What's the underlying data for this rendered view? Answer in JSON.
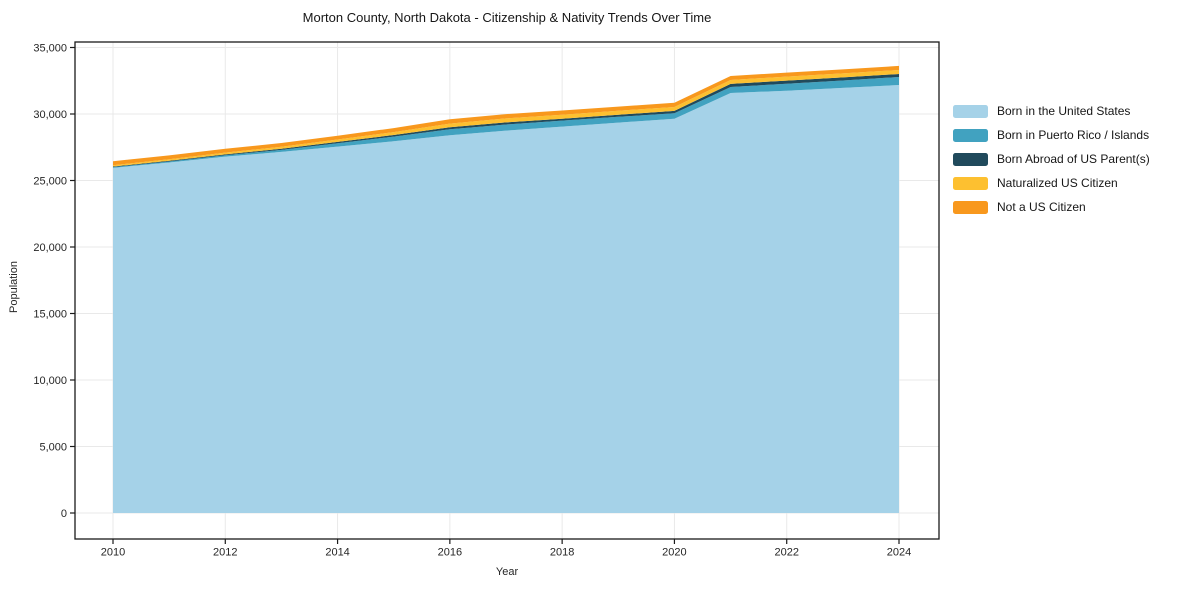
{
  "chart_data": {
    "type": "area",
    "stacked": true,
    "title": "Morton County, North Dakota - Citizenship & Nativity Trends Over Time",
    "xlabel": "Year",
    "ylabel": "Population",
    "x": [
      2010,
      2011,
      2012,
      2013,
      2014,
      2015,
      2016,
      2017,
      2018,
      2019,
      2020,
      2021,
      2022,
      2023,
      2024
    ],
    "series": [
      {
        "name": "Born in the United States",
        "color": "#a5d2e8",
        "values": [
          25950,
          26350,
          26800,
          27150,
          27550,
          27950,
          28400,
          28750,
          29050,
          29350,
          29650,
          31580,
          31750,
          31960,
          32180
        ]
      },
      {
        "name": "Born in Puerto Rico / Islands",
        "color": "#41a2c0",
        "values": [
          60,
          80,
          100,
          150,
          250,
          350,
          450,
          460,
          450,
          440,
          400,
          450,
          530,
          560,
          600
        ]
      },
      {
        "name": "Born Abroad of US Parent(s)",
        "color": "#204a5c",
        "values": [
          40,
          50,
          60,
          80,
          100,
          120,
          150,
          160,
          150,
          160,
          180,
          230,
          230,
          230,
          230
        ]
      },
      {
        "name": "Naturalized US Citizen",
        "color": "#fdc030",
        "values": [
          100,
          120,
          140,
          160,
          180,
          220,
          280,
          300,
          300,
          300,
          300,
          300,
          300,
          300,
          300
        ]
      },
      {
        "name": "Not a US Citizen",
        "color": "#f8981d",
        "values": [
          300,
          290,
          280,
          280,
          290,
          300,
          320,
          320,
          310,
          310,
          310,
          300,
          300,
          300,
          310
        ]
      }
    ],
    "xticks": [
      2010,
      2012,
      2014,
      2016,
      2018,
      2020,
      2022,
      2024
    ],
    "yticks": [
      0,
      5000,
      10000,
      15000,
      20000,
      25000,
      30000,
      35000
    ],
    "ytick_labels": [
      "0",
      "5,000",
      "10,000",
      "15,000",
      "20,000",
      "25,000",
      "30,000",
      "35,000"
    ],
    "ylim": [
      0,
      35000
    ],
    "grid": true,
    "legend_position": "right"
  },
  "style": {
    "frame_color": "#1a1a1a",
    "grid_color": "#e9e9e9",
    "tick_color": "#1a1a1a",
    "text_color": "#262626"
  }
}
